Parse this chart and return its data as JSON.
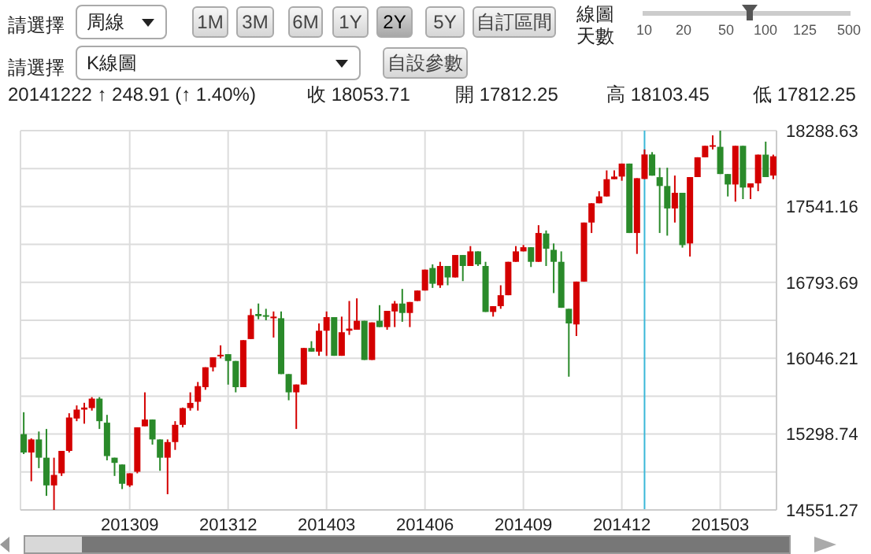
{
  "chart_data": {
    "type": "candlestick",
    "annotations": [
      "請選擇",
      "周線",
      "1M",
      "3M",
      "6M",
      "1Y",
      "2Y",
      "5Y",
      "自訂區間",
      "線圖天數",
      "10",
      "20",
      "50",
      "100",
      "125",
      "500",
      "請選擇",
      "K線圖",
      "自設參數",
      "20141222 ↑ 248.91 (↑ 1.40%)",
      "收 18053.71",
      "開 17812.25",
      "高 18103.45",
      "低 17812.25"
    ],
    "x": [
      "2013-05-27",
      "2013-06-03",
      "2013-06-10",
      "2013-06-17",
      "2013-06-24",
      "2013-07-01",
      "2013-07-08",
      "2013-07-15",
      "2013-07-22",
      "2013-07-29",
      "2013-08-05",
      "2013-08-12",
      "2013-08-19",
      "2013-08-26",
      "2013-09-02",
      "2013-09-09",
      "2013-09-16",
      "2013-09-23",
      "2013-09-30",
      "2013-10-07",
      "2013-10-14",
      "2013-10-21",
      "2013-10-28",
      "2013-11-04",
      "2013-11-11",
      "2013-11-18",
      "2013-11-25",
      "2013-12-02",
      "2013-12-09",
      "2013-12-16",
      "2013-12-23",
      "2013-12-30",
      "2014-01-06",
      "2014-01-13",
      "2014-01-20",
      "2014-01-27",
      "2014-02-03",
      "2014-02-10",
      "2014-02-17",
      "2014-02-24",
      "2014-03-03",
      "2014-03-10",
      "2014-03-17",
      "2014-03-24",
      "2014-03-31",
      "2014-04-07",
      "2014-04-14",
      "2014-04-21",
      "2014-04-28",
      "2014-05-05",
      "2014-05-12",
      "2014-05-19",
      "2014-05-26",
      "2014-06-02",
      "2014-06-09",
      "2014-06-16",
      "2014-06-23",
      "2014-06-30",
      "2014-07-07",
      "2014-07-14",
      "2014-07-21",
      "2014-07-28",
      "2014-08-04",
      "2014-08-11",
      "2014-08-18",
      "2014-08-25",
      "2014-09-01",
      "2014-09-08",
      "2014-09-15",
      "2014-09-22",
      "2014-09-29",
      "2014-10-06",
      "2014-10-13",
      "2014-10-20",
      "2014-10-27",
      "2014-11-03",
      "2014-11-10",
      "2014-11-17",
      "2014-11-24",
      "2014-12-01",
      "2014-12-08",
      "2014-12-15",
      "2014-12-22",
      "2014-12-29",
      "2015-01-05",
      "2015-01-12",
      "2015-01-19",
      "2015-01-26",
      "2015-02-02",
      "2015-02-09",
      "2015-02-16",
      "2015-02-23",
      "2015-03-02",
      "2015-03-09",
      "2015-03-16",
      "2015-03-23",
      "2015-03-30",
      "2015-04-06",
      "2015-04-13",
      "2015-04-20"
    ],
    "ohlc": [
      [
        15298,
        15514,
        15102,
        15117
      ],
      [
        15117,
        15256,
        14834,
        15246
      ],
      [
        15246,
        15324,
        14963,
        15066
      ],
      [
        15066,
        15349,
        14690,
        14793
      ],
      [
        14793,
        15066,
        14551.27,
        14896
      ],
      [
        14912,
        15133,
        14886,
        15133
      ],
      [
        15133,
        15504,
        15117,
        15462
      ],
      [
        15452,
        15581,
        15426,
        15540
      ],
      [
        15540,
        15607,
        15401,
        15560
      ],
      [
        15555,
        15663,
        15530,
        15648
      ],
      [
        15648,
        15663,
        15349,
        15426
      ],
      [
        15411,
        15488,
        15040,
        15082
      ],
      [
        15066,
        15066,
        14886,
        15015
      ],
      [
        14999,
        14999,
        14757,
        14809
      ],
      [
        14793,
        14912,
        14778,
        14912
      ],
      [
        14927,
        15365,
        14912,
        15365
      ],
      [
        15375,
        15710,
        15375,
        15442
      ],
      [
        15442,
        15442,
        15195,
        15246
      ],
      [
        15246,
        15246,
        14937,
        15066
      ],
      [
        15066,
        15246,
        14706,
        15220
      ],
      [
        15220,
        15426,
        15143,
        15390
      ],
      [
        15390,
        15560,
        15365,
        15555
      ],
      [
        15555,
        15710,
        15530,
        15606
      ],
      [
        15617,
        15812,
        15530,
        15771
      ],
      [
        15761,
        15957,
        15735,
        15957
      ],
      [
        15957,
        16055,
        15916,
        16055
      ],
      [
        16070,
        16173,
        16045,
        16080
      ],
      [
        16086,
        16086,
        15786,
        16019
      ],
      [
        16019,
        16019,
        15710,
        15761
      ],
      [
        15761,
        16224,
        15761,
        16224
      ],
      [
        16235,
        16533,
        16235,
        16471
      ],
      [
        16482,
        16585,
        16430,
        16461
      ],
      [
        16470,
        16533,
        16420,
        16461
      ],
      [
        16440,
        16507,
        16250,
        16456
      ],
      [
        16440,
        16507,
        15890,
        15890
      ],
      [
        15890,
        15890,
        15632,
        15710
      ],
      [
        15710,
        15787,
        15349,
        15787
      ],
      [
        15787,
        16147,
        15787,
        16147
      ],
      [
        16147,
        16214,
        16111,
        16111
      ],
      [
        16111,
        16389,
        16070,
        16317
      ],
      [
        16317,
        16507,
        16070,
        16451
      ],
      [
        16451,
        16451,
        16070,
        16070
      ],
      [
        16070,
        16456,
        16070,
        16302
      ],
      [
        16317,
        16610,
        16276,
        16338
      ],
      [
        16327,
        16636,
        16327,
        16415
      ],
      [
        16415,
        16415,
        16029,
        16029
      ],
      [
        16029,
        16399,
        16029,
        16399
      ],
      [
        16415,
        16569,
        16353,
        16353
      ],
      [
        16353,
        16513,
        16327,
        16513
      ],
      [
        16507,
        16610,
        16353,
        16585
      ],
      [
        16585,
        16729,
        16405,
        16492
      ],
      [
        16492,
        16600,
        16353,
        16600
      ],
      [
        16610,
        16713,
        16610,
        16713
      ],
      [
        16713,
        16919,
        16713,
        16919
      ],
      [
        16935,
        16971,
        16739,
        16780
      ],
      [
        16765,
        16996,
        16739,
        16955
      ],
      [
        16955,
        16955,
        16765,
        16842
      ],
      [
        16842,
        17063,
        16842,
        17063
      ],
      [
        17063,
        17063,
        16806,
        16955
      ],
      [
        16955,
        17151,
        16955,
        17099
      ],
      [
        17099,
        17099,
        16955,
        16971
      ],
      [
        16955,
        16996,
        16502,
        16502
      ],
      [
        16502,
        16559,
        16456,
        16559
      ],
      [
        16559,
        16765,
        16533,
        16667
      ],
      [
        16667,
        16996,
        16667,
        16996
      ],
      [
        16996,
        17151,
        16996,
        17099
      ],
      [
        17099,
        17162,
        17099,
        17140
      ],
      [
        17140,
        17140,
        16945,
        16996
      ],
      [
        16996,
        17357,
        16996,
        17280
      ],
      [
        17275,
        17305,
        16955,
        17125
      ],
      [
        17114,
        17177,
        16688,
        16996
      ],
      [
        16996,
        17099,
        16543,
        16543
      ],
      [
        16533,
        16533,
        15864,
        16389
      ],
      [
        16379,
        16801,
        16265,
        16801
      ],
      [
        16801,
        17383,
        16801,
        17383
      ],
      [
        17383,
        17573,
        17280,
        17573
      ],
      [
        17573,
        17692,
        17573,
        17640
      ],
      [
        17640,
        17897,
        17640,
        17810
      ],
      [
        17810,
        17897,
        17810,
        17836
      ],
      [
        17836,
        17964,
        17795,
        17964
      ],
      [
        17964,
        17964,
        17280,
        17280
      ],
      [
        17280,
        17820,
        17074,
        17820
      ],
      [
        17812.25,
        18103.45,
        17812.25,
        18053.71
      ],
      [
        18053.71,
        18077,
        17845,
        17845
      ],
      [
        17830,
        17923,
        17280,
        17743
      ],
      [
        17743,
        17923,
        17254,
        17522
      ],
      [
        17522,
        17846,
        17383,
        17676
      ],
      [
        17676,
        17676,
        17136,
        17161
      ],
      [
        17177,
        17831,
        17048,
        17831
      ],
      [
        17831,
        18026,
        17831,
        18026
      ],
      [
        18026,
        18139,
        18026,
        18139
      ],
      [
        18139,
        18242,
        18103,
        18145
      ],
      [
        18129,
        18288.63,
        17861,
        17861
      ],
      [
        17861,
        17861,
        17640,
        17758
      ],
      [
        17758,
        18139,
        17589,
        18139
      ],
      [
        18139,
        18139,
        17614,
        17728
      ],
      [
        17728,
        17769,
        17614,
        17769
      ],
      [
        17769,
        18052,
        17692,
        18052
      ],
      [
        18052,
        18180,
        17831,
        17831
      ],
      [
        17846,
        18052,
        17810,
        18036
      ]
    ],
    "colors": [
      "#2a8a2a",
      "#d40000",
      "#2a8a2a",
      "#2a8a2a",
      "#d40000",
      "#d40000",
      "#d40000",
      "#d40000",
      "#d40000",
      "#d40000",
      "#2a8a2a",
      "#2a8a2a",
      "#2a8a2a",
      "#2a8a2a",
      "#d40000",
      "#d40000",
      "#d40000",
      "#2a8a2a",
      "#2a8a2a",
      "#d40000",
      "#d40000",
      "#d40000",
      "#d40000",
      "#d40000",
      "#d40000",
      "#d40000",
      "#d40000",
      "#2a8a2a",
      "#2a8a2a",
      "#d40000",
      "#d40000",
      "#2a8a2a",
      "#2a8a2a",
      "#d40000",
      "#2a8a2a",
      "#2a8a2a",
      "#d40000",
      "#d40000",
      "#2a8a2a",
      "#d40000",
      "#d40000",
      "#2a8a2a",
      "#d40000",
      "#d40000",
      "#d40000",
      "#2a8a2a",
      "#d40000",
      "#2a8a2a",
      "#d40000",
      "#d40000",
      "#2a8a2a",
      "#d40000",
      "#d40000",
      "#d40000",
      "#2a8a2a",
      "#d40000",
      "#2a8a2a",
      "#d40000",
      "#2a8a2a",
      "#d40000",
      "#2a8a2a",
      "#2a8a2a",
      "#d40000",
      "#d40000",
      "#d40000",
      "#d40000",
      "#d40000",
      "#2a8a2a",
      "#d40000",
      "#2a8a2a",
      "#2a8a2a",
      "#2a8a2a",
      "#2a8a2a",
      "#d40000",
      "#d40000",
      "#d40000",
      "#d40000",
      "#d40000",
      "#d40000",
      "#d40000",
      "#2a8a2a",
      "#d40000",
      "#d40000",
      "#2a8a2a",
      "#2a8a2a",
      "#2a8a2a",
      "#d40000",
      "#2a8a2a",
      "#d40000",
      "#d40000",
      "#d40000",
      "#d40000",
      "#2a8a2a",
      "#2a8a2a",
      "#d40000",
      "#2a8a2a",
      "#d40000",
      "#d40000",
      "#2a8a2a",
      "#d40000"
    ],
    "xlim": [
      "2013-05-24",
      "2015-04-23"
    ],
    "xticks": [
      {
        "value": "2013-09-02",
        "label": "201309"
      },
      {
        "value": "2013-12-02",
        "label": "201312"
      },
      {
        "value": "2014-03-03",
        "label": "201403"
      },
      {
        "value": "2014-06-02",
        "label": "201406"
      },
      {
        "value": "2014-09-01",
        "label": "201409"
      },
      {
        "value": "2014-12-01",
        "label": "201412"
      },
      {
        "value": "2015-03-02",
        "label": "201503"
      }
    ],
    "ylim": [
      14551.27,
      18288.63
    ],
    "yticks": [
      14551.27,
      {
        "value": 14925.005,
        "label": null
      },
      15298.74,
      {
        "value": 15672.475,
        "label": null
      },
      16046.21,
      {
        "value": 16419.95,
        "label": null
      },
      16793.69,
      {
        "value": 17167.425,
        "label": null
      },
      17541.16,
      {
        "value": 17914.895,
        "label": null
      },
      18288.63
    ],
    "ref_lines": [
      {
        "axis": "x",
        "value": "2014-12-22",
        "label": null,
        "color": "#3ab8d8"
      }
    ],
    "grid": true
  }
}
